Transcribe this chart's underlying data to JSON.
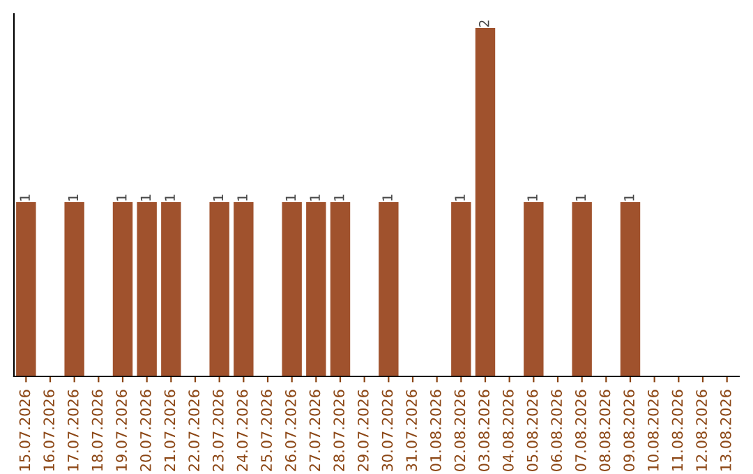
{
  "chart_data": {
    "type": "bar",
    "categories": [
      "15.07.2026",
      "16.07.2026",
      "17.07.2026",
      "18.07.2026",
      "19.07.2026",
      "20.07.2026",
      "21.07.2026",
      "22.07.2026",
      "23.07.2026",
      "24.07.2026",
      "25.07.2026",
      "26.07.2026",
      "27.07.2026",
      "28.07.2026",
      "29.07.2026",
      "30.07.2026",
      "31.07.2026",
      "01.08.2026",
      "02.08.2026",
      "03.08.2026",
      "04.08.2026",
      "05.08.2026",
      "06.08.2026",
      "07.08.2026",
      "08.08.2026",
      "09.08.2026",
      "10.08.2026",
      "11.08.2026",
      "12.08.2026",
      "13.08.2026"
    ],
    "values": [
      1,
      null,
      1,
      null,
      1,
      1,
      1,
      null,
      1,
      1,
      null,
      1,
      1,
      1,
      null,
      1,
      null,
      null,
      1,
      2,
      null,
      1,
      null,
      1,
      null,
      1,
      null,
      null,
      null,
      null
    ],
    "color": "#a0522d",
    "data_labels": true,
    "tick_labels": "x",
    "grid": false
  }
}
